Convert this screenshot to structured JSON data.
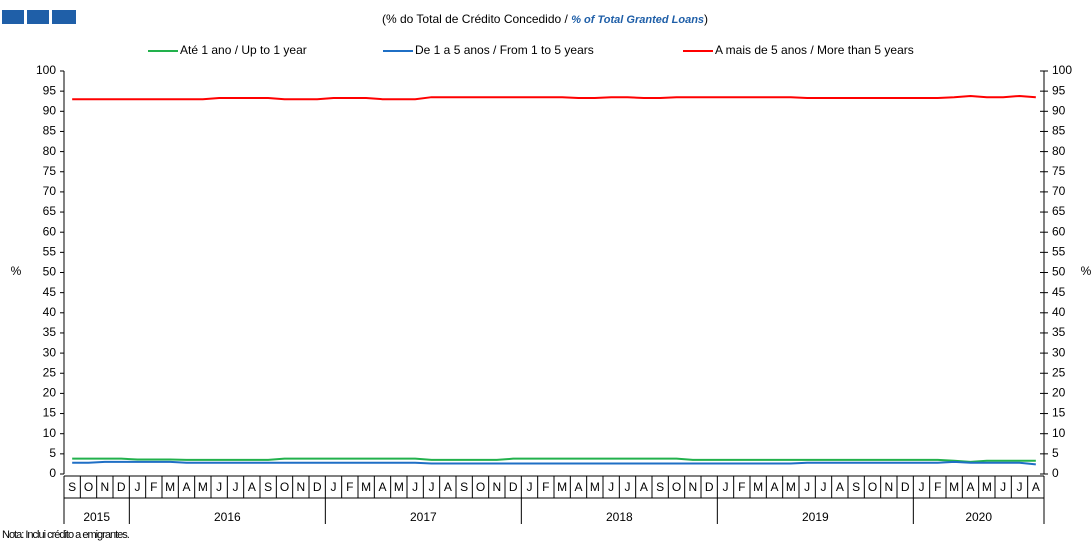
{
  "chart_data": {
    "type": "line",
    "subtitle_pt": "(% do Total de Crédito Concedido  /",
    "subtitle_en": "% of Total Granted Loans",
    "subtitle_close": ")",
    "y_label": "%",
    "y2_label": "%",
    "note": "Nota: Inclui crédito a emigrantes.",
    "categories": [
      "S",
      "O",
      "N",
      "D",
      "J",
      "F",
      "M",
      "A",
      "M",
      "J",
      "J",
      "A",
      "S",
      "O",
      "N",
      "D",
      "J",
      "F",
      "M",
      "A",
      "M",
      "J",
      "J",
      "A",
      "S",
      "O",
      "N",
      "D",
      "J",
      "F",
      "M",
      "A",
      "M",
      "J",
      "J",
      "A",
      "S",
      "O",
      "N",
      "D",
      "J",
      "F",
      "M",
      "A",
      "M",
      "J",
      "J",
      "A",
      "S",
      "O",
      "N",
      "D",
      "J",
      "F",
      "M",
      "A",
      "M",
      "J",
      "J",
      "A"
    ],
    "years": [
      "2015",
      "2016",
      "2017",
      "2018",
      "2019",
      "2020"
    ],
    "series": [
      {
        "name": "Até 1 ano / Up to 1 year",
        "color": "#22b14c",
        "values": [
          3.8,
          3.8,
          3.8,
          3.8,
          3.6,
          3.6,
          3.6,
          3.5,
          3.5,
          3.5,
          3.5,
          3.5,
          3.5,
          3.8,
          3.8,
          3.8,
          3.8,
          3.8,
          3.8,
          3.8,
          3.8,
          3.8,
          3.5,
          3.5,
          3.5,
          3.5,
          3.5,
          3.8,
          3.8,
          3.8,
          3.8,
          3.8,
          3.8,
          3.8,
          3.8,
          3.8,
          3.8,
          3.8,
          3.5,
          3.5,
          3.5,
          3.5,
          3.5,
          3.5,
          3.5,
          3.5,
          3.5,
          3.5,
          3.5,
          3.5,
          3.5,
          3.5,
          3.5,
          3.5,
          3.3,
          3.0,
          3.3,
          3.3,
          3.3,
          3.3
        ]
      },
      {
        "name": "De 1 a 5 anos / From 1 to 5 years",
        "color": "#1f6fc5",
        "values": [
          2.8,
          2.8,
          3.0,
          3.0,
          3.0,
          3.0,
          3.0,
          2.8,
          2.8,
          2.8,
          2.8,
          2.8,
          2.8,
          2.8,
          2.8,
          2.8,
          2.8,
          2.8,
          2.8,
          2.8,
          2.8,
          2.8,
          2.6,
          2.6,
          2.6,
          2.6,
          2.6,
          2.6,
          2.6,
          2.6,
          2.6,
          2.6,
          2.6,
          2.6,
          2.6,
          2.6,
          2.6,
          2.6,
          2.6,
          2.6,
          2.6,
          2.6,
          2.6,
          2.6,
          2.6,
          2.8,
          2.8,
          2.8,
          2.8,
          2.8,
          2.8,
          2.8,
          2.8,
          2.8,
          3.0,
          2.8,
          2.8,
          2.8,
          2.8,
          2.4
        ]
      },
      {
        "name": "A mais de 5 anos / More than 5 years",
        "color": "#ff0000",
        "values": [
          93,
          93,
          93,
          93,
          93,
          93,
          93,
          93,
          93,
          93.3,
          93.3,
          93.3,
          93.3,
          93,
          93,
          93,
          93.3,
          93.3,
          93.3,
          93,
          93,
          93,
          93.5,
          93.5,
          93.5,
          93.5,
          93.5,
          93.5,
          93.5,
          93.5,
          93.5,
          93.3,
          93.3,
          93.5,
          93.5,
          93.3,
          93.3,
          93.5,
          93.5,
          93.5,
          93.5,
          93.5,
          93.5,
          93.5,
          93.5,
          93.3,
          93.3,
          93.3,
          93.3,
          93.3,
          93.3,
          93.3,
          93.3,
          93.3,
          93.5,
          93.8,
          93.5,
          93.5,
          93.8,
          93.5
        ]
      }
    ],
    "ylim": [
      0,
      100
    ],
    "yticks": [
      0,
      5,
      10,
      15,
      20,
      25,
      30,
      35,
      40,
      45,
      50,
      55,
      60,
      65,
      70,
      75,
      80,
      85,
      90,
      95,
      100
    ]
  }
}
